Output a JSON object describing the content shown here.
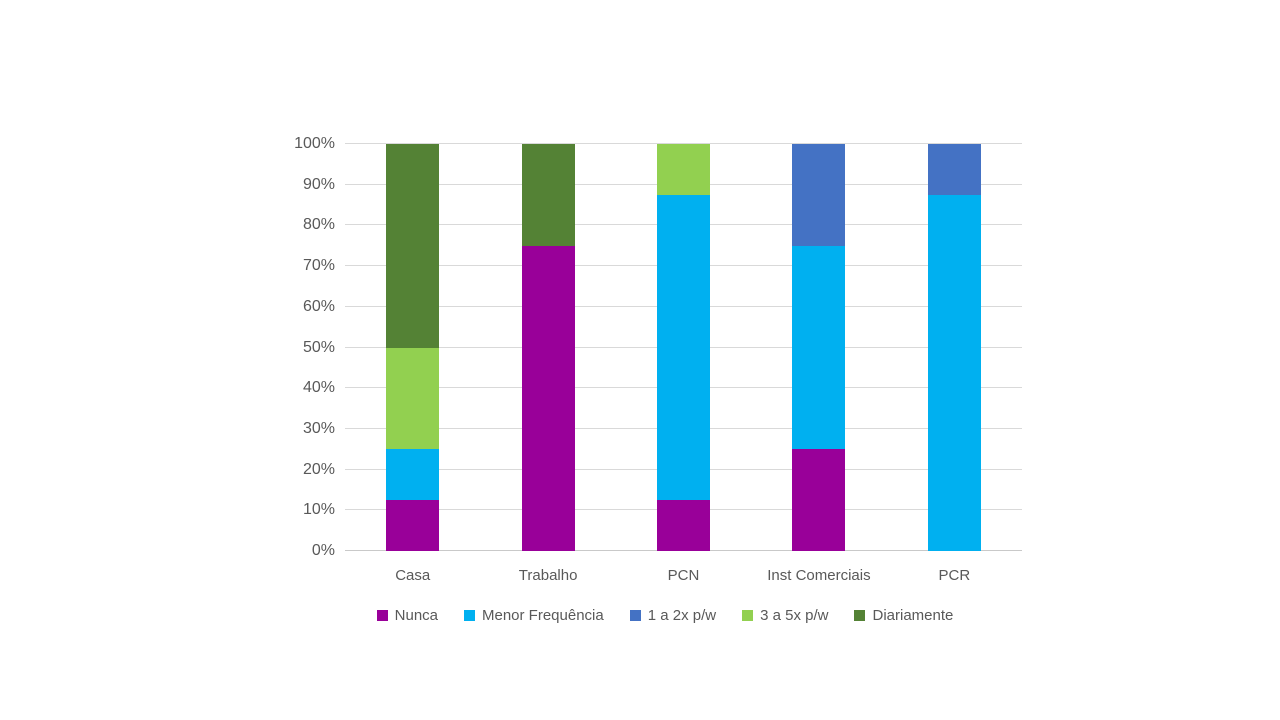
{
  "chart_data": {
    "type": "bar",
    "stacked": true,
    "percent_stacked": true,
    "title": "",
    "xlabel": "",
    "ylabel": "",
    "categories": [
      "Casa",
      "Trabalho",
      "PCN",
      "Inst Comerciais",
      "PCR"
    ],
    "series": [
      {
        "name": "Nunca",
        "color": "#990099",
        "values": [
          12.5,
          75,
          12.5,
          25,
          0
        ]
      },
      {
        "name": "Menor Frequência",
        "color": "#00b0f0",
        "values": [
          12.5,
          0,
          75,
          50,
          87.5
        ]
      },
      {
        "name": "1 a 2x p/w",
        "color": "#4472c4",
        "values": [
          0,
          0,
          0,
          25,
          12.5
        ]
      },
      {
        "name": "3 a 5x p/w",
        "color": "#92d050",
        "values": [
          25,
          0,
          12.5,
          0,
          0
        ]
      },
      {
        "name": "Diariamente",
        "color": "#548235",
        "values": [
          50,
          25,
          0,
          0,
          0
        ]
      }
    ],
    "yticks": [
      "0%",
      "10%",
      "20%",
      "30%",
      "40%",
      "50%",
      "60%",
      "70%",
      "80%",
      "90%",
      "100%"
    ],
    "ylim": [
      0,
      100
    ],
    "grid": true,
    "legend_position": "bottom"
  },
  "style": {
    "background": "#ffffff",
    "tick_text_color": "#595959",
    "gridline_color": "#d9d9d9",
    "axis_line_color": "#c9c9c9"
  }
}
